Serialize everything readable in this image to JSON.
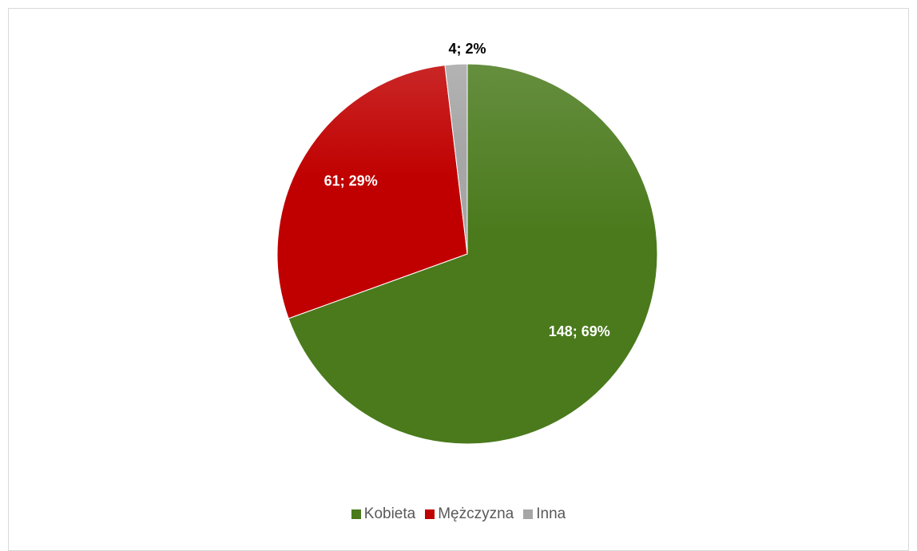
{
  "chart_data": {
    "type": "pie",
    "title": "",
    "start_angle_deg": 0,
    "slices": [
      {
        "name": "Kobieta",
        "value": 148,
        "label": "148; 69%",
        "color": "#4a7a1c",
        "label_color": "#ffffff"
      },
      {
        "name": "Mężczyzna",
        "value": 61,
        "label": "61; 29%",
        "color": "#c00000",
        "label_color": "#ffffff"
      },
      {
        "name": "Inna",
        "value": 4,
        "label": "4; 2%",
        "color": "#a6a6a6",
        "label_color": "#000000"
      }
    ],
    "legend_position": "bottom"
  }
}
